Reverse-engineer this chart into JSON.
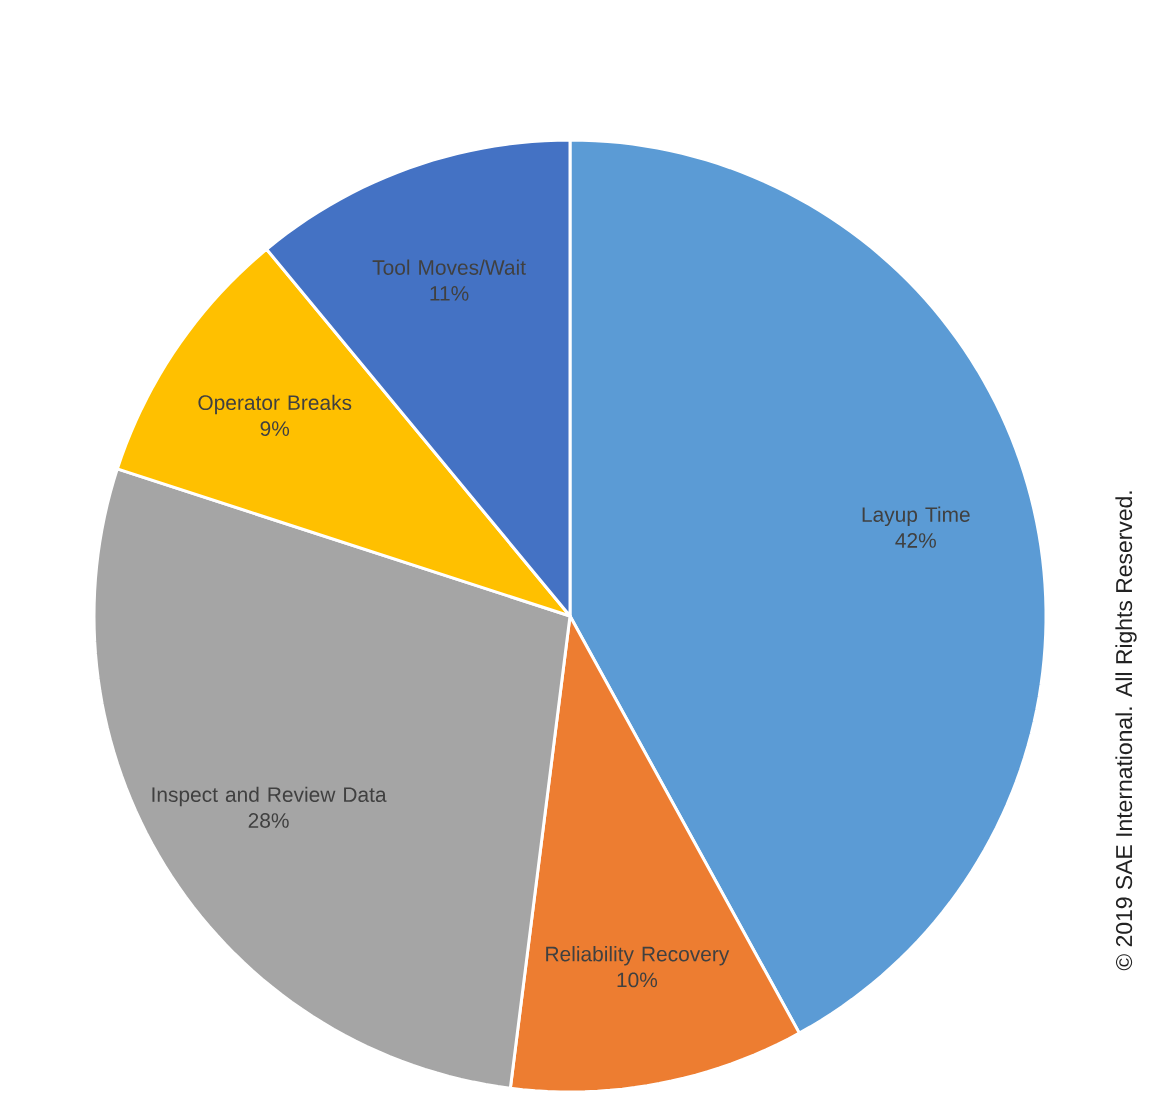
{
  "chart_data": {
    "type": "pie",
    "categories": [
      "Layup Time",
      "Reliability Recovery",
      "Inspect and Review Data",
      "Operator Breaks",
      "Tool Moves/Wait"
    ],
    "values": [
      42,
      10,
      28,
      9,
      11
    ],
    "value_labels": [
      "42%",
      "10%",
      "28%",
      "9%",
      "11%"
    ],
    "colors": [
      "#5b9bd5",
      "#ed7d31",
      "#a5a5a5",
      "#ffc000",
      "#4472c4"
    ],
    "annotations": [
      "© 2019 SAE International. All Rights Reserved."
    ]
  }
}
